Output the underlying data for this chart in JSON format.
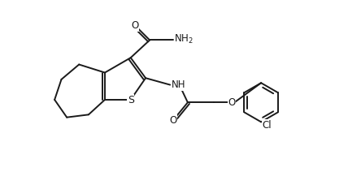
{
  "background_color": "#ffffff",
  "bond_color": "#1a1a1a",
  "font_size": 8.5,
  "line_width": 1.4,
  "xlim": [
    0,
    10
  ],
  "ylim": [
    0,
    5
  ],
  "figsize": [
    4.44,
    2.17
  ],
  "dpi": 100
}
